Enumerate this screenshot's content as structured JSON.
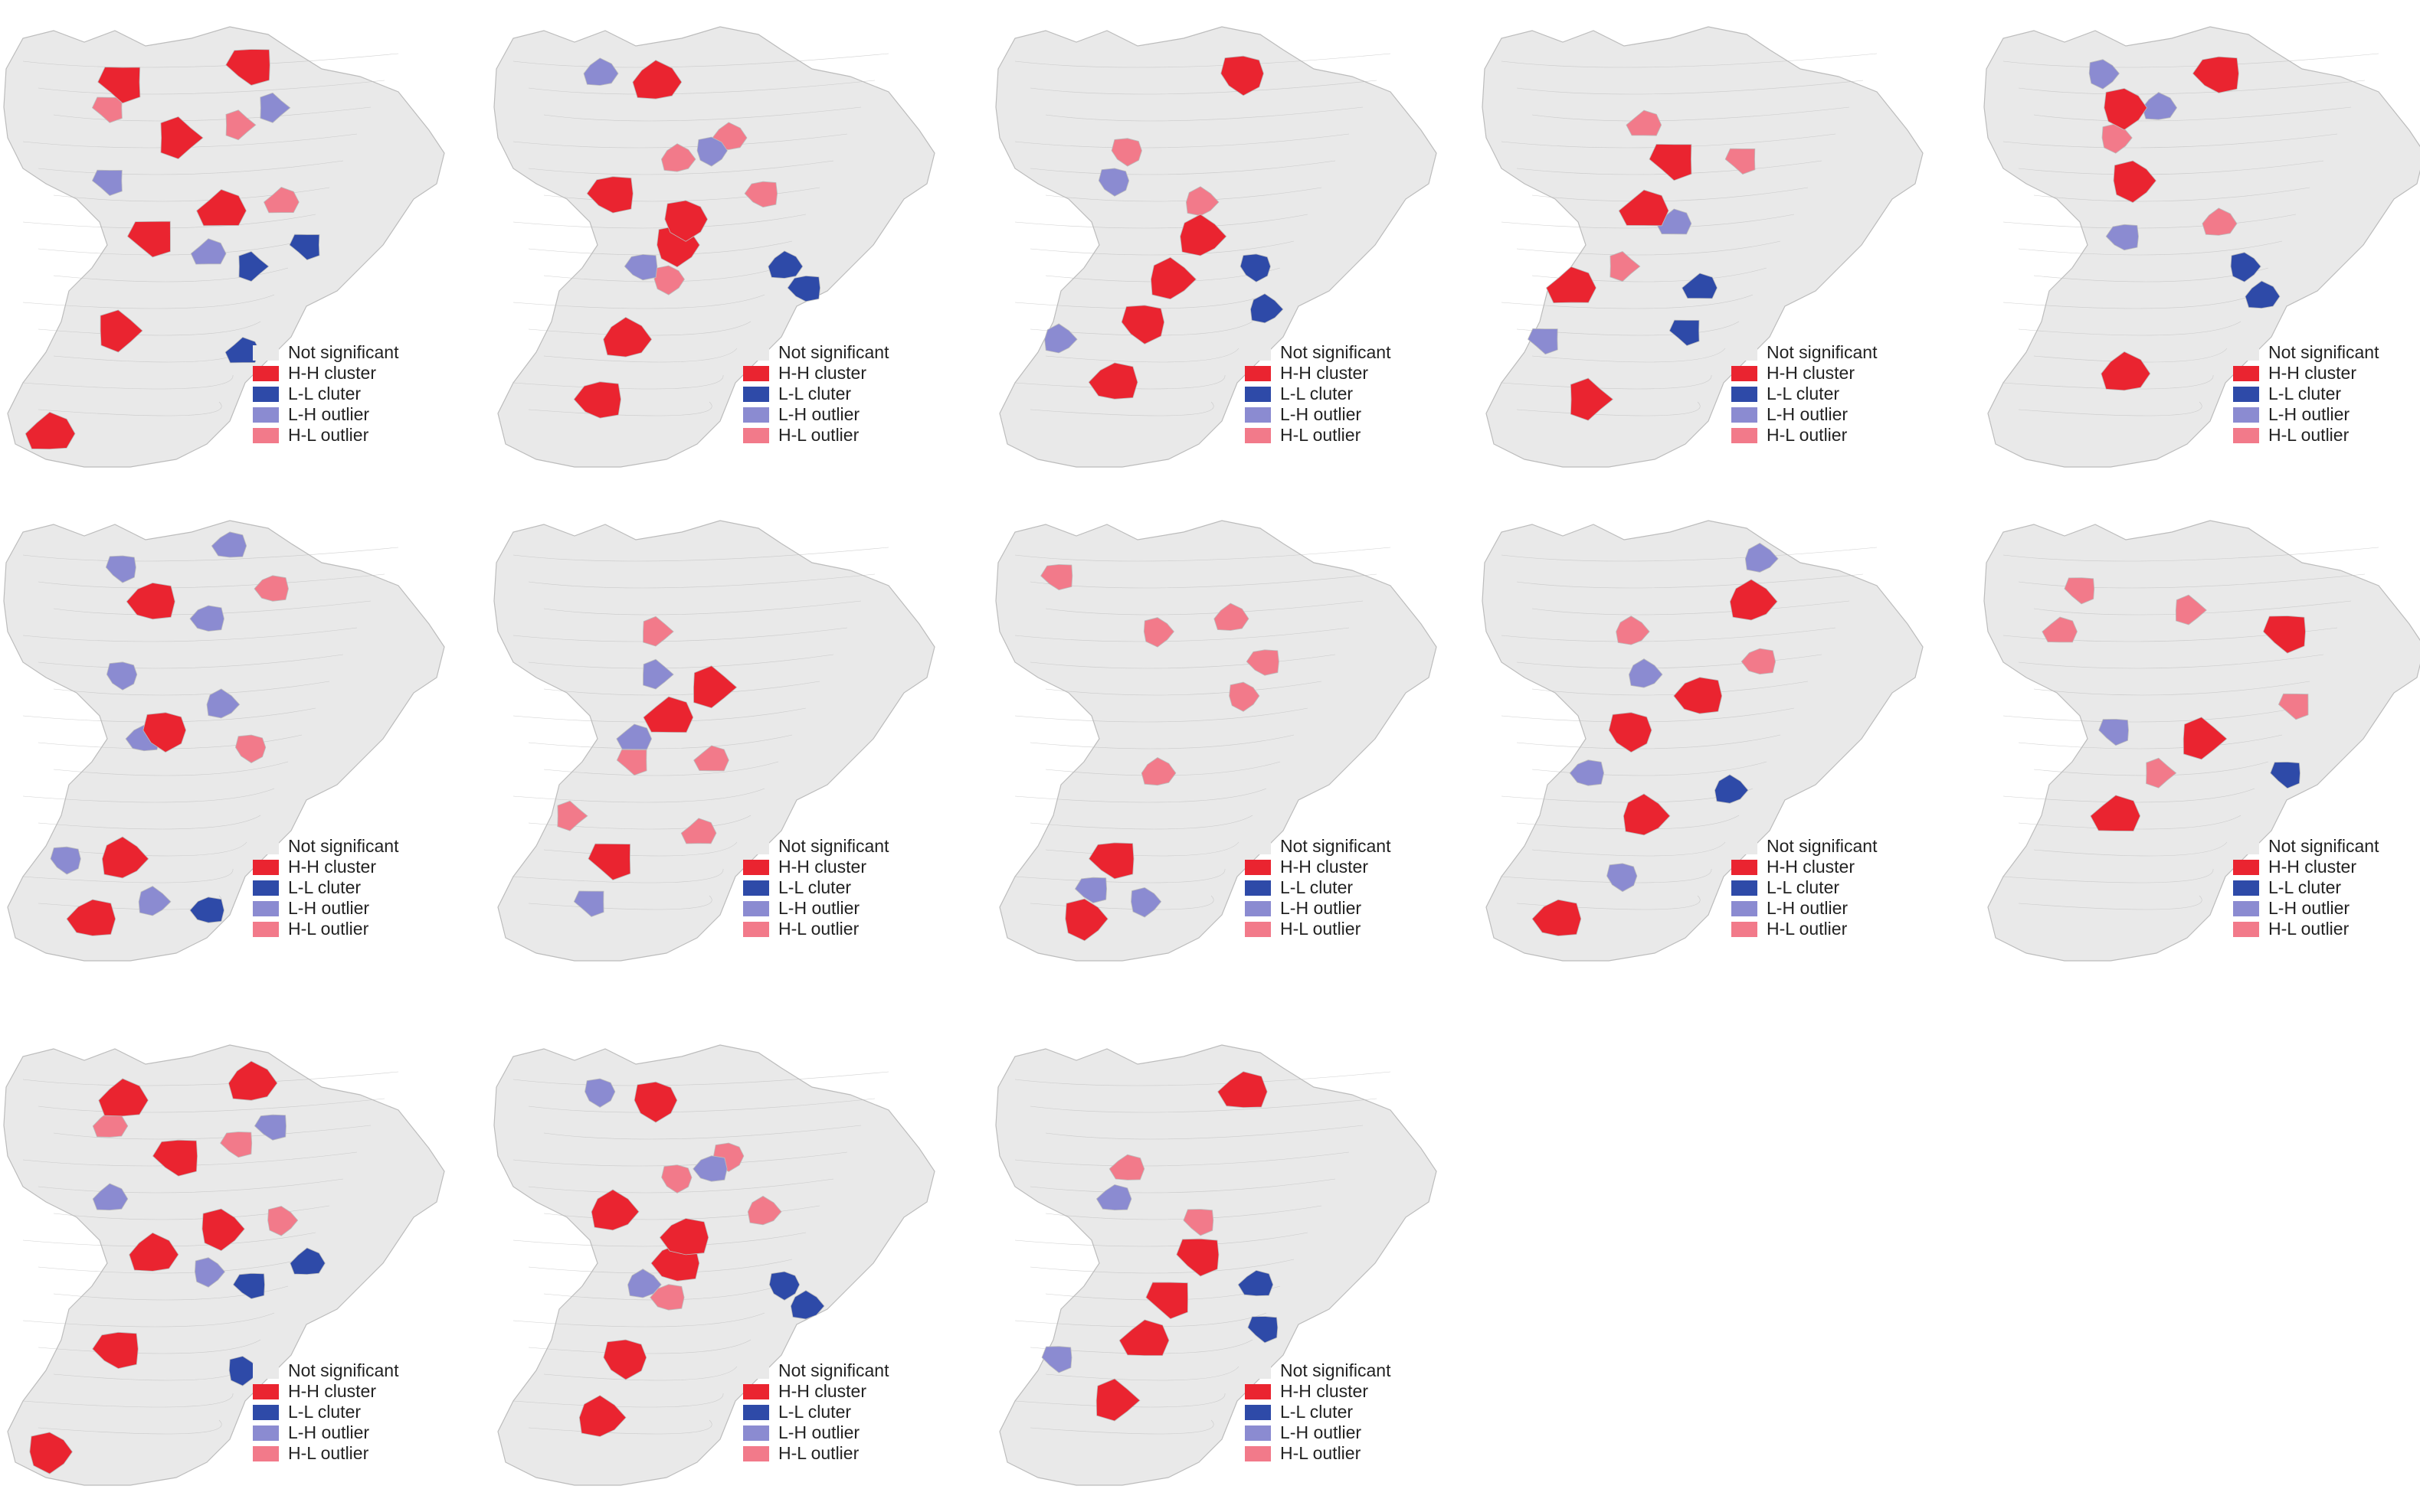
{
  "colors": {
    "not_significant": "#e9e9e9",
    "hh_cluster": "#ea2430",
    "ll_cluster": "#2e4aa8",
    "lh_outlier": "#8b8bd1",
    "hl_outlier": "#f27a8a",
    "boundary": "#bcbcbc"
  },
  "legend": [
    {
      "key": "ns",
      "label": "Not significant"
    },
    {
      "key": "hh",
      "label": "H-H cluster"
    },
    {
      "key": "ll",
      "label": "L-L cluter"
    },
    {
      "key": "lh",
      "label": "L-H outlier"
    },
    {
      "key": "hl",
      "label": "H-L outlier"
    }
  ],
  "maps": [
    {
      "hh": [
        [
          0.25,
          0.12
        ],
        [
          0.38,
          0.25
        ],
        [
          0.48,
          0.42
        ],
        [
          0.32,
          0.48
        ],
        [
          0.24,
          0.7
        ],
        [
          0.08,
          0.94
        ],
        [
          0.55,
          0.08
        ]
      ],
      "ll": [
        [
          0.68,
          0.5
        ],
        [
          0.55,
          0.55
        ],
        [
          0.53,
          0.75
        ]
      ],
      "lh": [
        [
          0.22,
          0.35
        ],
        [
          0.6,
          0.18
        ],
        [
          0.45,
          0.52
        ]
      ],
      "hl": [
        [
          0.22,
          0.18
        ],
        [
          0.52,
          0.22
        ],
        [
          0.62,
          0.4
        ]
      ]
    },
    {
      "hh": [
        [
          0.35,
          0.12
        ],
        [
          0.25,
          0.38
        ],
        [
          0.4,
          0.5
        ],
        [
          0.28,
          0.72
        ],
        [
          0.22,
          0.86
        ],
        [
          0.42,
          0.44
        ]
      ],
      "ll": [
        [
          0.65,
          0.55
        ],
        [
          0.7,
          0.6
        ]
      ],
      "lh": [
        [
          0.22,
          0.1
        ],
        [
          0.32,
          0.55
        ],
        [
          0.48,
          0.28
        ]
      ],
      "hl": [
        [
          0.52,
          0.25
        ],
        [
          0.6,
          0.38
        ],
        [
          0.38,
          0.58
        ],
        [
          0.4,
          0.3
        ]
      ]
    },
    {
      "hh": [
        [
          0.55,
          0.1
        ],
        [
          0.45,
          0.48
        ],
        [
          0.25,
          0.82
        ],
        [
          0.32,
          0.68
        ],
        [
          0.38,
          0.58
        ]
      ],
      "ll": [
        [
          0.58,
          0.55
        ],
        [
          0.6,
          0.65
        ]
      ],
      "lh": [
        [
          0.25,
          0.35
        ],
        [
          0.12,
          0.72
        ]
      ],
      "hl": [
        [
          0.28,
          0.28
        ],
        [
          0.45,
          0.4
        ]
      ]
    },
    {
      "hh": [
        [
          0.35,
          0.42
        ],
        [
          0.42,
          0.3
        ],
        [
          0.22,
          0.86
        ],
        [
          0.18,
          0.6
        ]
      ],
      "ll": [
        [
          0.48,
          0.6
        ],
        [
          0.45,
          0.7
        ]
      ],
      "lh": [
        [
          0.42,
          0.45
        ],
        [
          0.12,
          0.72
        ]
      ],
      "hl": [
        [
          0.35,
          0.22
        ],
        [
          0.58,
          0.3
        ],
        [
          0.3,
          0.55
        ]
      ]
    },
    {
      "hh": [
        [
          0.32,
          0.35
        ],
        [
          0.3,
          0.8
        ],
        [
          0.52,
          0.1
        ],
        [
          0.3,
          0.18
        ]
      ],
      "ll": [
        [
          0.58,
          0.55
        ],
        [
          0.62,
          0.62
        ]
      ],
      "lh": [
        [
          0.25,
          0.1
        ],
        [
          0.38,
          0.18
        ],
        [
          0.3,
          0.48
        ]
      ],
      "hl": [
        [
          0.28,
          0.25
        ],
        [
          0.52,
          0.45
        ]
      ]
    },
    {
      "hh": [
        [
          0.32,
          0.18
        ],
        [
          0.35,
          0.48
        ],
        [
          0.25,
          0.78
        ],
        [
          0.18,
          0.92
        ]
      ],
      "ll": [
        [
          0.45,
          0.9
        ]
      ],
      "lh": [
        [
          0.45,
          0.22
        ],
        [
          0.25,
          0.35
        ],
        [
          0.48,
          0.42
        ],
        [
          0.3,
          0.5
        ],
        [
          0.12,
          0.78
        ],
        [
          0.32,
          0.88
        ],
        [
          0.5,
          0.05
        ],
        [
          0.25,
          0.1
        ]
      ],
      "hl": [
        [
          0.6,
          0.15
        ],
        [
          0.55,
          0.52
        ]
      ]
    },
    {
      "hh": [
        [
          0.48,
          0.38
        ],
        [
          0.38,
          0.45
        ],
        [
          0.25,
          0.78
        ]
      ],
      "ll": [],
      "lh": [
        [
          0.35,
          0.35
        ],
        [
          0.3,
          0.5
        ],
        [
          0.2,
          0.88
        ]
      ],
      "hl": [
        [
          0.35,
          0.25
        ],
        [
          0.48,
          0.55
        ],
        [
          0.3,
          0.55
        ],
        [
          0.15,
          0.68
        ],
        [
          0.45,
          0.72
        ]
      ]
    },
    {
      "hh": [
        [
          0.25,
          0.78
        ],
        [
          0.18,
          0.92
        ]
      ],
      "ll": [],
      "lh": [
        [
          0.2,
          0.85
        ],
        [
          0.32,
          0.88
        ]
      ],
      "hl": [
        [
          0.12,
          0.12
        ],
        [
          0.35,
          0.25
        ],
        [
          0.52,
          0.22
        ],
        [
          0.6,
          0.32
        ],
        [
          0.55,
          0.4
        ],
        [
          0.35,
          0.58
        ]
      ]
    },
    {
      "hh": [
        [
          0.6,
          0.18
        ],
        [
          0.48,
          0.4
        ],
        [
          0.32,
          0.48
        ],
        [
          0.35,
          0.68
        ],
        [
          0.15,
          0.92
        ]
      ],
      "ll": [
        [
          0.55,
          0.62
        ]
      ],
      "lh": [
        [
          0.35,
          0.35
        ],
        [
          0.22,
          0.58
        ],
        [
          0.3,
          0.82
        ],
        [
          0.62,
          0.08
        ]
      ],
      "hl": [
        [
          0.32,
          0.25
        ],
        [
          0.62,
          0.32
        ]
      ]
    },
    {
      "hh": [
        [
          0.68,
          0.25
        ],
        [
          0.48,
          0.5
        ],
        [
          0.28,
          0.68
        ]
      ],
      "ll": [
        [
          0.68,
          0.58
        ]
      ],
      "lh": [
        [
          0.28,
          0.48
        ]
      ],
      "hl": [
        [
          0.2,
          0.15
        ],
        [
          0.45,
          0.2
        ],
        [
          0.15,
          0.25
        ],
        [
          0.7,
          0.42
        ],
        [
          0.38,
          0.58
        ]
      ]
    }
  ]
}
